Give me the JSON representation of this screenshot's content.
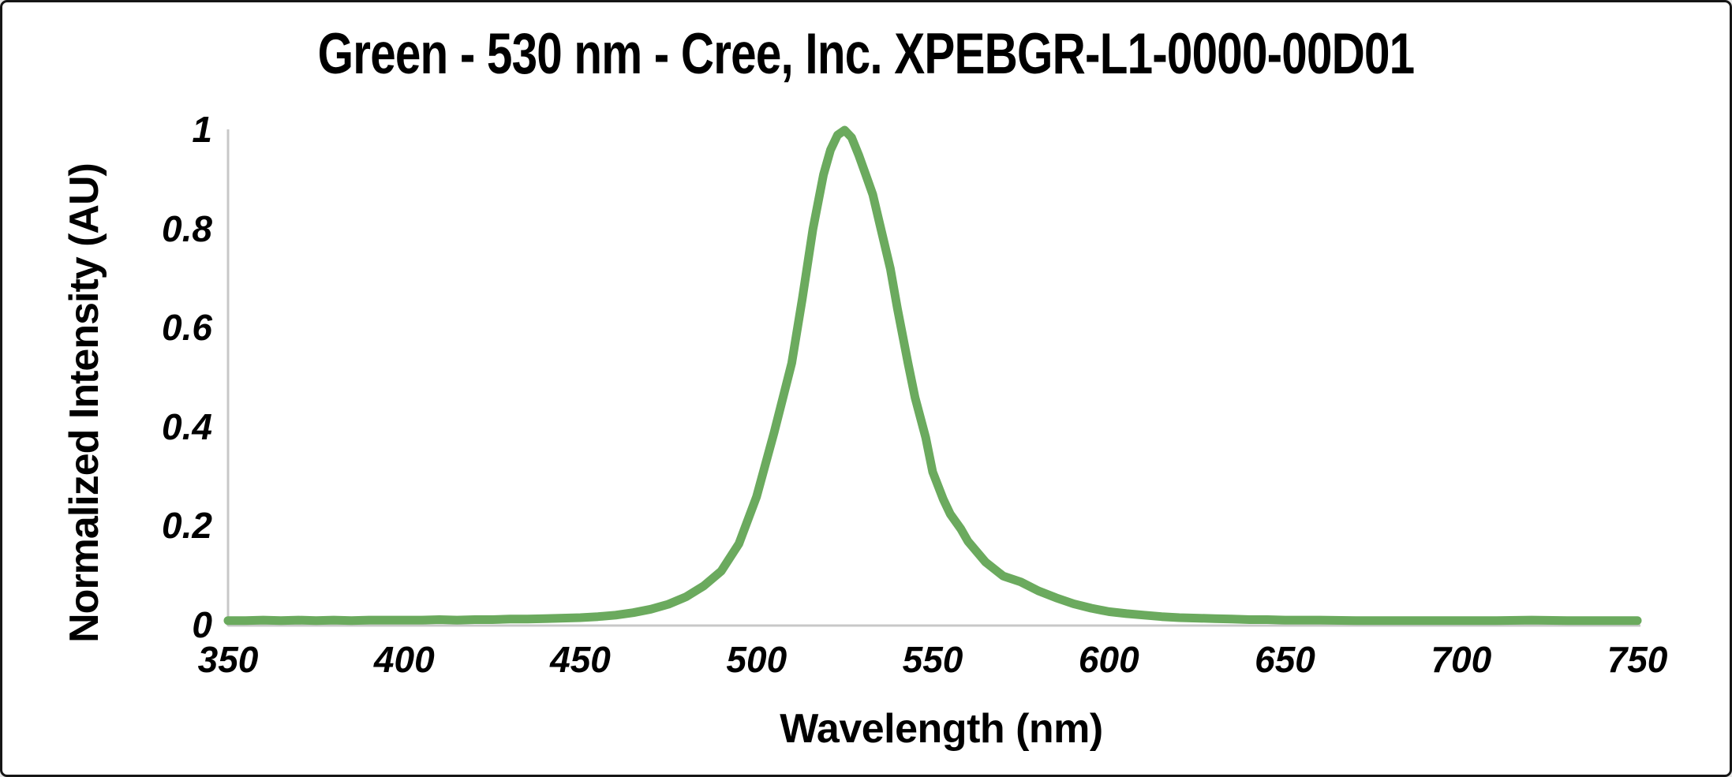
{
  "frame": {
    "background": "#FFFFFF",
    "border_color": "#161616",
    "axis_color": "#C8C8C8",
    "text_color": "#000000"
  },
  "chart_data": {
    "type": "line",
    "title": "Green - 530 nm - Cree, Inc. XPEBGR-L1-0000-00D01",
    "xlabel": "Wavelength (nm)",
    "ylabel": "Normalized Intensity (AU)",
    "xlim": [
      350,
      750
    ],
    "ylim": [
      0,
      1
    ],
    "x_ticks": [
      350,
      400,
      450,
      500,
      550,
      600,
      650,
      700,
      750
    ],
    "y_ticks": [
      {
        "label": "1",
        "value": 1.0
      },
      {
        "label": "0.8",
        "value": 0.8
      },
      {
        "label": "0.6",
        "value": 0.6
      },
      {
        "label": "0.4",
        "value": 0.4
      },
      {
        "label": "0.2",
        "value": 0.2
      },
      {
        "label": "0",
        "value": 0.0
      }
    ],
    "grid": "off",
    "legend": "none",
    "series": [
      {
        "color": "#6BAA5E",
        "stroke_width": 11,
        "points": [
          [
            350,
            0.01
          ],
          [
            355,
            0.01
          ],
          [
            360,
            0.011
          ],
          [
            365,
            0.01
          ],
          [
            370,
            0.011
          ],
          [
            375,
            0.01
          ],
          [
            380,
            0.011
          ],
          [
            385,
            0.01
          ],
          [
            390,
            0.011
          ],
          [
            395,
            0.011
          ],
          [
            400,
            0.011
          ],
          [
            405,
            0.011
          ],
          [
            410,
            0.012
          ],
          [
            415,
            0.011
          ],
          [
            420,
            0.012
          ],
          [
            425,
            0.012
          ],
          [
            430,
            0.013
          ],
          [
            435,
            0.013
          ],
          [
            440,
            0.014
          ],
          [
            445,
            0.015
          ],
          [
            450,
            0.016
          ],
          [
            455,
            0.018
          ],
          [
            460,
            0.021
          ],
          [
            465,
            0.026
          ],
          [
            470,
            0.033
          ],
          [
            475,
            0.043
          ],
          [
            480,
            0.058
          ],
          [
            485,
            0.08
          ],
          [
            490,
            0.11
          ],
          [
            495,
            0.165
          ],
          [
            500,
            0.26
          ],
          [
            505,
            0.39
          ],
          [
            510,
            0.53
          ],
          [
            513,
            0.66
          ],
          [
            516,
            0.8
          ],
          [
            519,
            0.91
          ],
          [
            521,
            0.96
          ],
          [
            523,
            0.99
          ],
          [
            525,
            1.0
          ],
          [
            527,
            0.985
          ],
          [
            529,
            0.95
          ],
          [
            531,
            0.91
          ],
          [
            533,
            0.87
          ],
          [
            535,
            0.81
          ],
          [
            538,
            0.72
          ],
          [
            540,
            0.64
          ],
          [
            543,
            0.53
          ],
          [
            545,
            0.46
          ],
          [
            548,
            0.38
          ],
          [
            550,
            0.31
          ],
          [
            553,
            0.255
          ],
          [
            555,
            0.225
          ],
          [
            558,
            0.195
          ],
          [
            560,
            0.17
          ],
          [
            565,
            0.128
          ],
          [
            570,
            0.1
          ],
          [
            575,
            0.088
          ],
          [
            580,
            0.07
          ],
          [
            585,
            0.056
          ],
          [
            590,
            0.044
          ],
          [
            595,
            0.035
          ],
          [
            600,
            0.028
          ],
          [
            605,
            0.024
          ],
          [
            610,
            0.021
          ],
          [
            615,
            0.018
          ],
          [
            620,
            0.016
          ],
          [
            625,
            0.015
          ],
          [
            630,
            0.014
          ],
          [
            635,
            0.013
          ],
          [
            640,
            0.012
          ],
          [
            645,
            0.012
          ],
          [
            650,
            0.011
          ],
          [
            660,
            0.011
          ],
          [
            670,
            0.01
          ],
          [
            680,
            0.01
          ],
          [
            690,
            0.01
          ],
          [
            700,
            0.01
          ],
          [
            710,
            0.01
          ],
          [
            720,
            0.011
          ],
          [
            730,
            0.01
          ],
          [
            740,
            0.01
          ],
          [
            750,
            0.01
          ]
        ]
      }
    ]
  }
}
